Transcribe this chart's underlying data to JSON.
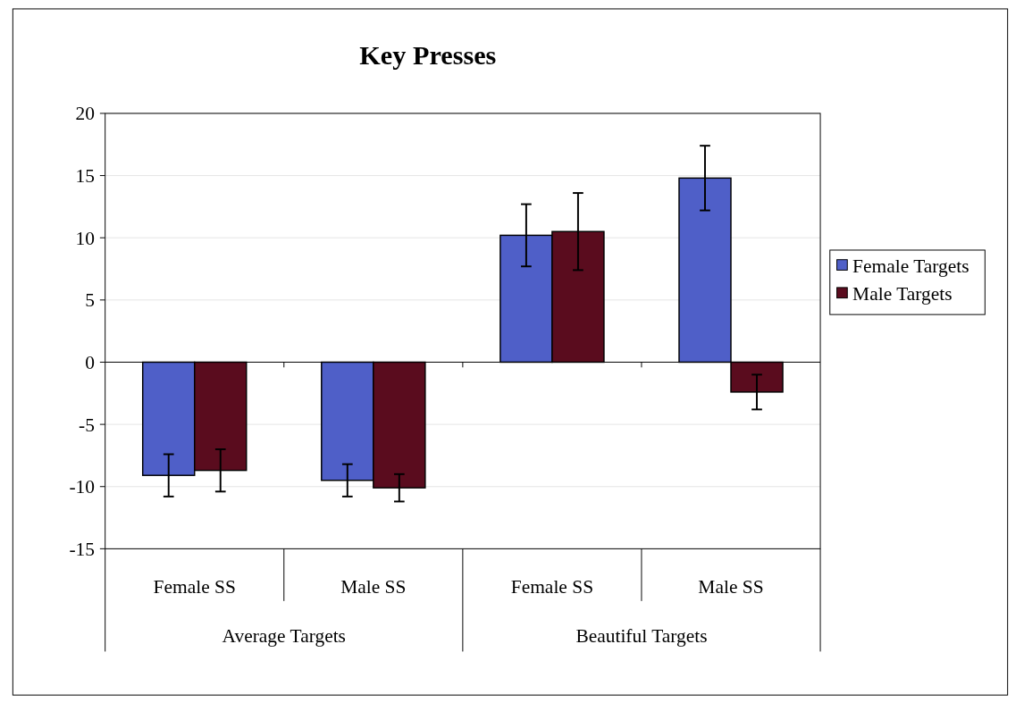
{
  "chart_data": {
    "type": "bar",
    "title": "Key Presses",
    "categories": [
      "Female SS",
      "Male SS",
      "Female SS",
      "Male SS"
    ],
    "series": [
      {
        "name": "Female Targets",
        "color": "#4f5fc8",
        "values": [
          -9.1,
          -9.5,
          10.2,
          14.8
        ],
        "errors": [
          1.7,
          1.3,
          2.5,
          2.6
        ]
      },
      {
        "name": "Male Targets",
        "color": "#5a0c1e",
        "values": [
          -8.7,
          -10.1,
          10.5,
          -2.4
        ],
        "errors": [
          1.7,
          1.1,
          3.1,
          1.4
        ]
      }
    ],
    "annotations": [
      "Average Targets",
      "Beautiful Targets"
    ],
    "ylim": [
      -15,
      20
    ],
    "yticks": [
      -15,
      -10,
      -5,
      0,
      5,
      10,
      15,
      20
    ],
    "grid": "y",
    "legend": "right"
  }
}
